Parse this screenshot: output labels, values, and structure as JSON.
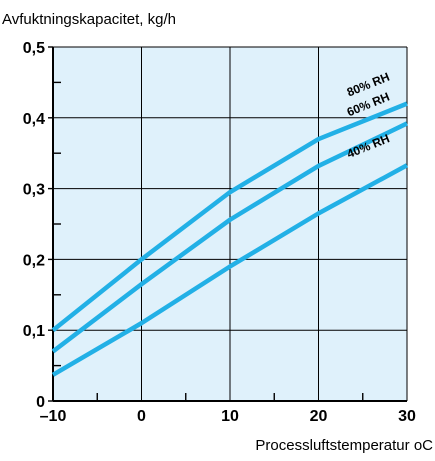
{
  "chart_data": {
    "type": "line",
    "title": "",
    "ylabel": "Avfuktningskapacitet, kg/h",
    "xlabel": "Processluftstemperatur oC",
    "xlim": [
      -10,
      30
    ],
    "ylim": [
      0,
      0.5
    ],
    "x_ticks": [
      -10,
      0,
      10,
      20,
      30
    ],
    "x_tick_labels": [
      "–10",
      "0",
      "10",
      "20",
      "30"
    ],
    "y_ticks": [
      0,
      0.1,
      0.2,
      0.3,
      0.4,
      0.5
    ],
    "y_tick_labels": [
      "0",
      "0,1",
      "0,2",
      "0,3",
      "0,4",
      "0,5"
    ],
    "grid": true,
    "plot_background": "#dff1fb",
    "line_color": "#22b0e6",
    "series": [
      {
        "name": "80% RH",
        "x": [
          -10,
          0,
          10,
          20,
          30
        ],
        "y": [
          0.1,
          0.2,
          0.295,
          0.37,
          0.42
        ]
      },
      {
        "name": "60% RH",
        "x": [
          -10,
          0,
          10,
          20,
          30
        ],
        "y": [
          0.07,
          0.165,
          0.256,
          0.332,
          0.392
        ]
      },
      {
        "name": "40% RH",
        "x": [
          -10,
          0,
          10,
          20,
          30
        ],
        "y": [
          0.037,
          0.11,
          0.19,
          0.265,
          0.333
        ]
      }
    ]
  }
}
